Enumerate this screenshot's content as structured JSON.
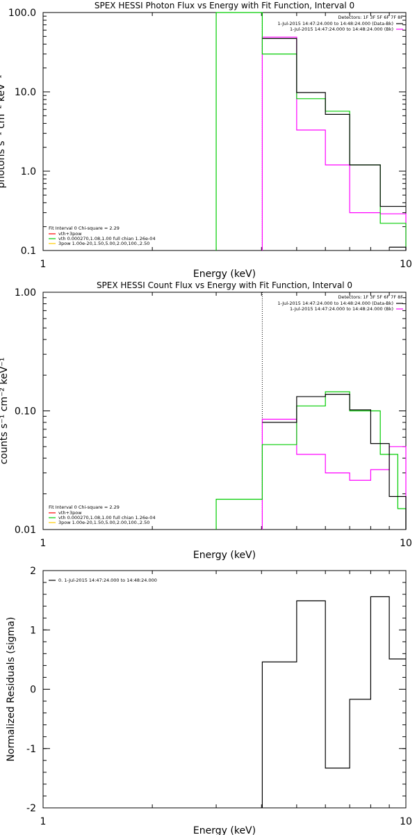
{
  "chart_data": [
    {
      "type": "line",
      "title": "SPEX HESSI Photon Flux vs Energy with Fit Function, Interval 0",
      "xlabel": "Energy (keV)",
      "ylabel": "photons s⁻¹ cm⁻² keV⁻¹",
      "xscale": "log",
      "yscale": "log",
      "xlim": [
        1,
        10
      ],
      "ylim": [
        0.1,
        100
      ],
      "xticks": [
        {
          "v": 1,
          "label": "1"
        },
        {
          "v": 10,
          "label": "10"
        }
      ],
      "yticks": [
        {
          "v": 0.1,
          "label": "0.1"
        },
        {
          "v": 1,
          "label": "1.0"
        },
        {
          "v": 10,
          "label": "10.0"
        },
        {
          "v": 100,
          "label": "100.0"
        }
      ],
      "detectors": "Detectors: 1F 3F 5F 6F 7F 8F",
      "top_legend": [
        {
          "text": "1-Jul-2015 14:47:24.000 to 14:48:24.000 (Data-Bk)",
          "color": "#000000"
        },
        {
          "text": "1-Jul-2015 14:47:24.000 to 14:48:24.000 (Bk)",
          "color": "#ff00ff"
        }
      ],
      "fit_legend_title": "Fit Interval 0   Chi-square = 2.29",
      "fit_legend": [
        {
          "text": "vth+3pow",
          "color": "#ff0000"
        },
        {
          "text": "vth 0.000270,1.08,1.00  full chian 1.26e-04",
          "color": "#00cc00"
        },
        {
          "text": "3pow 1.00e-20,1.50,5.00,2.00,100.,2.50",
          "color": "#ffcc00"
        }
      ],
      "vlines": [
        {
          "x": 4.02,
          "style": "dotted",
          "color": "#000000"
        }
      ],
      "series": [
        {
          "color": "#ff00ff",
          "edges": [
            4.02,
            5.0,
            6.0,
            7.0,
            8.5,
            10.0
          ],
          "values": [
            49,
            3.3,
            1.2,
            0.3,
            0.29
          ],
          "dropL": true,
          "dropR": true
        },
        {
          "color": "#00cc00",
          "edges": [
            3.0,
            4.02,
            5.0,
            6.0,
            7.0,
            8.5,
            10.0
          ],
          "values": [
            100,
            30,
            8.2,
            5.7,
            1.2,
            0.22
          ],
          "dropL": true,
          "dropR": true
        },
        {
          "color": "#000000",
          "edges": [
            4.02,
            5.0,
            6.0,
            7.0,
            8.5,
            10.0
          ],
          "values": [
            47,
            9.8,
            5.2,
            1.2,
            0.36
          ],
          "dropL": false,
          "dropR": false
        },
        {
          "color": "#000000",
          "edges": [
            9.0,
            10.0
          ],
          "values": [
            0.11
          ],
          "dropL": false,
          "dropR": true
        }
      ]
    },
    {
      "type": "line",
      "title": "SPEX HESSI Count Flux vs Energy with Fit Function, Interval 0",
      "xlabel": "Energy (keV)",
      "ylabel": "counts s⁻¹ cm⁻² keV⁻¹",
      "xscale": "log",
      "yscale": "log",
      "xlim": [
        1,
        10
      ],
      "ylim": [
        0.01,
        1
      ],
      "xticks": [
        {
          "v": 1,
          "label": "1"
        },
        {
          "v": 10,
          "label": "10"
        }
      ],
      "yticks": [
        {
          "v": 0.01,
          "label": "0.01"
        },
        {
          "v": 0.1,
          "label": "0.10"
        },
        {
          "v": 1,
          "label": "1.00"
        }
      ],
      "detectors": "Detectors: 1F 3F 5F 6F 7F 8F",
      "top_legend": [
        {
          "text": "1-Jul-2015 14:47:24.000 to 14:48:24.000 (Data-Bk)",
          "color": "#000000"
        },
        {
          "text": "1-Jul-2015 14:47:24.000 to 14:48:24.000 (Bk)",
          "color": "#ff00ff"
        }
      ],
      "fit_legend_title": "Fit Interval 0   Chi-square = 2.29",
      "fit_legend": [
        {
          "text": "vth+3pow",
          "color": "#ff0000"
        },
        {
          "text": "vth 0.000270,1.08,1.00  full chian 1.26e-04",
          "color": "#00cc00"
        },
        {
          "text": "3pow 1.00e-20,1.50,5.00,2.00,100.,2.50",
          "color": "#ffcc00"
        }
      ],
      "vlines": [
        {
          "x": 4.02,
          "style": "dotted",
          "color": "#000000"
        }
      ],
      "series": [
        {
          "color": "#ff00ff",
          "edges": [
            4.02,
            5.0,
            6.0,
            7.0,
            8.0,
            9.0,
            10.0
          ],
          "values": [
            0.085,
            0.043,
            0.03,
            0.026,
            0.032,
            0.05
          ],
          "dropL": true,
          "dropR": true
        },
        {
          "color": "#00cc00",
          "edges": [
            3.0,
            4.02,
            5.0,
            6.0,
            7.0,
            8.5,
            9.5,
            10.0
          ],
          "values": [
            0.018,
            0.052,
            0.11,
            0.145,
            0.1,
            0.043,
            0.015
          ],
          "dropL": true,
          "dropR": true
        },
        {
          "color": "#000000",
          "edges": [
            4.02,
            5.0,
            6.0,
            7.0,
            8.0,
            9.0,
            10.0
          ],
          "values": [
            0.08,
            0.132,
            0.138,
            0.102,
            0.053,
            0.019
          ],
          "dropL": false,
          "dropR": true
        }
      ]
    },
    {
      "type": "line",
      "title": "",
      "xlabel": "Energy (keV)",
      "ylabel": "Normalized Residuals (sigma)",
      "xscale": "log",
      "yscale": "linear",
      "xlim": [
        1,
        10
      ],
      "ylim": [
        -2,
        2
      ],
      "xticks": [
        {
          "v": 1,
          "label": "1"
        },
        {
          "v": 10,
          "label": "10"
        }
      ],
      "yticks": [
        {
          "v": -2,
          "label": "-2"
        },
        {
          "v": -1,
          "label": "-1"
        },
        {
          "v": 0,
          "label": "0"
        },
        {
          "v": 1,
          "label": "1"
        },
        {
          "v": 2,
          "label": "2"
        }
      ],
      "detectors": "",
      "top_legend": [],
      "resid_legend": "0. 1-Jul-2015 14:47:24.000 to 14:48:24.000",
      "fit_legend_title": "",
      "fit_legend": [],
      "vlines": [],
      "series": [
        {
          "color": "#000000",
          "edges": [
            4.02,
            5.0,
            6.0,
            7.0,
            8.0,
            9.0,
            10.0
          ],
          "values": [
            0.46,
            1.49,
            -1.33,
            -0.17,
            1.56,
            0.51
          ],
          "dropL": true,
          "dropR": false
        }
      ]
    }
  ]
}
